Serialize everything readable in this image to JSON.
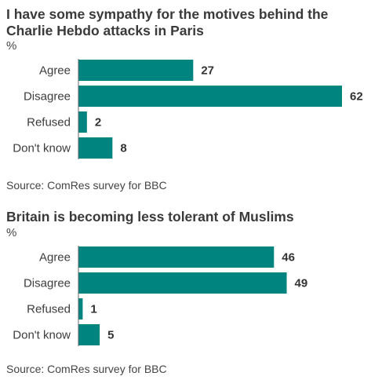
{
  "colors": {
    "bar": "#00847f",
    "axis": "#666666",
    "text": "#333333"
  },
  "chart_data": [
    {
      "type": "bar",
      "orientation": "horizontal",
      "title": "I have some sympathy for the motives behind the Charlie Hebdo attacks in Paris",
      "unit": "%",
      "categories": [
        "Agree",
        "Disagree",
        "Refused",
        "Don't know"
      ],
      "values": [
        27,
        62,
        2,
        8
      ],
      "xlim": [
        0,
        62
      ],
      "source": "Source: ComRes survey for BBC"
    },
    {
      "type": "bar",
      "orientation": "horizontal",
      "title": "Britain is becoming less tolerant of Muslims",
      "unit": "%",
      "categories": [
        "Agree",
        "Disagree",
        "Refused",
        "Don't know"
      ],
      "values": [
        46,
        49,
        1,
        5
      ],
      "xlim": [
        0,
        62
      ],
      "source": "Source: ComRes survey for BBC"
    }
  ]
}
